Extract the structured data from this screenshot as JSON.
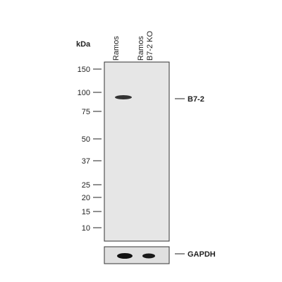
{
  "unit": "kDa",
  "lanes": [
    {
      "lines": [
        "Ramos"
      ]
    },
    {
      "lines": [
        "Ramos",
        "B7-2 KO"
      ]
    }
  ],
  "markers": [
    "150",
    "100",
    "75",
    "50",
    "37",
    "25",
    "20",
    "15",
    "10"
  ],
  "bands": {
    "target": "B7-2",
    "control": "GAPDH"
  }
}
